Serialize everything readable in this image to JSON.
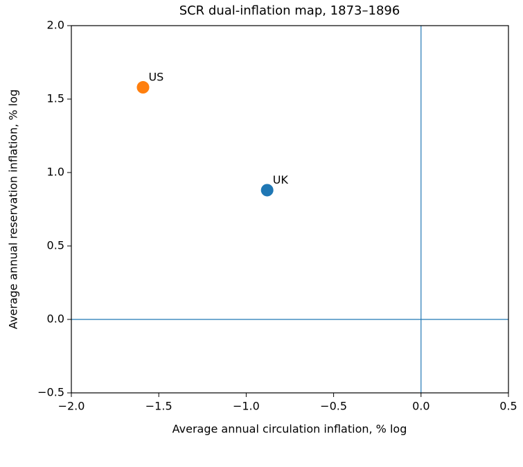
{
  "chart_data": {
    "type": "scatter",
    "title": "SCR dual-inflation map, 1873–1896",
    "x_label": "Average annual circulation inflation, % log",
    "y_label": "Average annual reservation inflation, % log",
    "xlim": [
      -2.0,
      0.5
    ],
    "ylim": [
      -0.5,
      2.0
    ],
    "xticks": [
      {
        "value": -2.0,
        "label": "−2.0"
      },
      {
        "value": -1.5,
        "label": "−1.5"
      },
      {
        "value": -1.0,
        "label": "−1.0"
      },
      {
        "value": -0.5,
        "label": "−0.5"
      },
      {
        "value": 0.0,
        "label": "0.0"
      },
      0.5
    ],
    "yticks": [
      {
        "value": -0.5,
        "label": "−0.5"
      },
      {
        "value": 0.0,
        "label": "0.0"
      },
      0.5,
      {
        "value": 1.0,
        "label": "1.0"
      },
      1.5,
      {
        "value": 2.0,
        "label": "2.0"
      }
    ],
    "axhline": 0,
    "axvline": 0,
    "reference_line_color": "#1f77b4",
    "series": [
      {
        "name": "UK",
        "color": "#1f77b4",
        "x": [
          -0.88
        ],
        "values": [
          0.88
        ]
      },
      {
        "name": "US",
        "color": "#ff7f0e",
        "x": [
          -1.59
        ],
        "values": [
          1.58
        ]
      }
    ]
  }
}
